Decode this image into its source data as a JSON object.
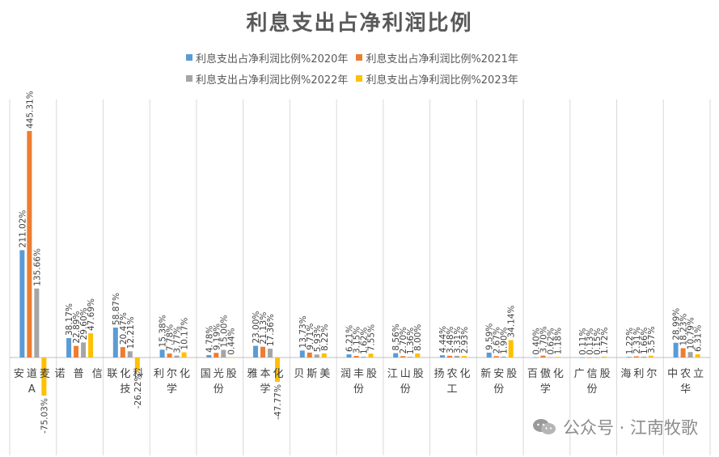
{
  "chart_data": {
    "type": "bar",
    "title": "利息支出占净利润比例",
    "categories": [
      "安道麦A",
      "诺 普 信",
      "联化科技",
      "利尔化学",
      "国光股份",
      "雅本化学",
      "贝斯美",
      "润丰股份",
      "江山股份",
      "扬农化工",
      "新安股份",
      "百傲化学",
      "广信股份",
      "海利尔",
      "中农立华"
    ],
    "series": [
      {
        "name": "利息支出占净利润比例%2020年",
        "color": "#5B9BD5",
        "values": [
          211.02,
          38.17,
          58.87,
          15.38,
          4.78,
          23.0,
          13.73,
          6.21,
          8.56,
          4.44,
          9.59,
          0.4,
          0.11,
          1.22,
          28.99
        ],
        "labels": [
          "211.02%",
          "38.17%",
          "58.87%",
          "15.38%",
          "4.78%",
          "23.00%",
          "13.73%",
          "6.21%",
          "8.56%",
          "4.44%",
          "9.59%",
          "0.40%",
          "0.11%",
          "1.22%",
          "28.99%"
        ]
      },
      {
        "name": "利息支出占净利润比例%2021年",
        "color": "#ED7D31",
        "values": [
          445.31,
          22.89,
          20.47,
          7.78,
          9.19,
          21.13,
          9.71,
          3.15,
          2.7,
          3.48,
          2.67,
          3.7,
          0.13,
          2.31,
          18.23
        ],
        "labels": [
          "445.31%",
          "22.89%",
          "20.47%",
          "7.78%",
          "9.19%",
          "21.13%",
          "9.71%",
          "3.15%",
          "2.70%",
          "3.48%",
          "2.67%",
          "3.70%",
          "0.13%",
          "2.31%",
          "18.23%"
        ]
      },
      {
        "name": "利息支出占净利润比例%2022年",
        "color": "#A5A5A5",
        "values": [
          135.66,
          29.6,
          12.21,
          3.77,
          15.0,
          17.36,
          5.93,
          1.62,
          1.36,
          3.31,
          1.9,
          0.62,
          0.15,
          1.66,
          10.79
        ],
        "labels": [
          "135.66%",
          "29.60%",
          "12.21%",
          "3.77%",
          "15.00%",
          "17.36%",
          "5.93%",
          "1.62%",
          "1.36%",
          "3.31%",
          "1.90%",
          "0.62%",
          "0.15%",
          "1.66%",
          "10.79%"
        ]
      },
      {
        "name": "利息支出占净利润比例%2023年",
        "color": "#FFC000",
        "values": [
          -75.03,
          47.69,
          -26.22,
          10.17,
          0.44,
          -47.77,
          8.22,
          7.55,
          8.0,
          2.93,
          34.14,
          1.18,
          1.72,
          3.57,
          6.31
        ],
        "labels": [
          "-75.03%",
          "47.69%",
          "-26.22%",
          "10.17%",
          "0.44%",
          "-47.77%",
          "8.22%",
          "7.55%",
          "8.00%",
          "2.93%",
          "34.14%",
          "1.18%",
          "1.72%",
          "3.57%",
          "6.31%"
        ]
      }
    ],
    "ylim": [
      -180,
      480
    ],
    "grid": false,
    "legend_position": "top"
  },
  "watermark": {
    "text": "公众号 · 江南牧歌",
    "icon": "wechat-icon"
  }
}
